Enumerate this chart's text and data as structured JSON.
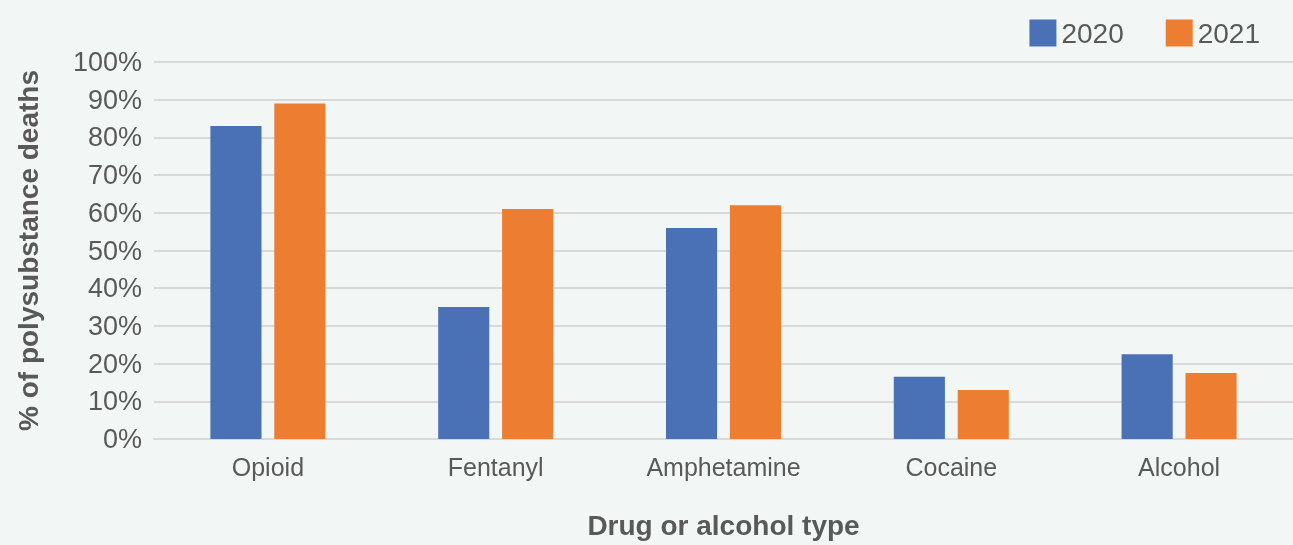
{
  "chart_data": {
    "type": "bar",
    "xlabel": "Drug or alcohol type",
    "ylabel": "% of polysubstance deaths",
    "categories": [
      "Opioid",
      "Fentanyl",
      "Amphetamine",
      "Cocaine",
      "Alcohol"
    ],
    "series": [
      {
        "name": "2020",
        "color": "#4a71b6",
        "values": [
          83,
          35,
          56,
          16.5,
          22.5
        ]
      },
      {
        "name": "2021",
        "color": "#ed7d31",
        "values": [
          89,
          61,
          62,
          13,
          17.5
        ]
      }
    ],
    "ylim": [
      0,
      100
    ],
    "yticks": [
      {
        "value": 0,
        "label": "0%"
      },
      {
        "value": 10,
        "label": "10%"
      },
      {
        "value": 20,
        "label": "20%"
      },
      {
        "value": 30,
        "label": "30%"
      },
      {
        "value": 40,
        "label": "40%"
      },
      {
        "value": 50,
        "label": "50%"
      },
      {
        "value": 60,
        "label": "60%"
      },
      {
        "value": 70,
        "label": "70%"
      },
      {
        "value": 80,
        "label": "80%"
      },
      {
        "value": 90,
        "label": "90%"
      },
      {
        "value": 100,
        "label": "100%"
      }
    ],
    "grid": "y",
    "legend": "top right"
  }
}
